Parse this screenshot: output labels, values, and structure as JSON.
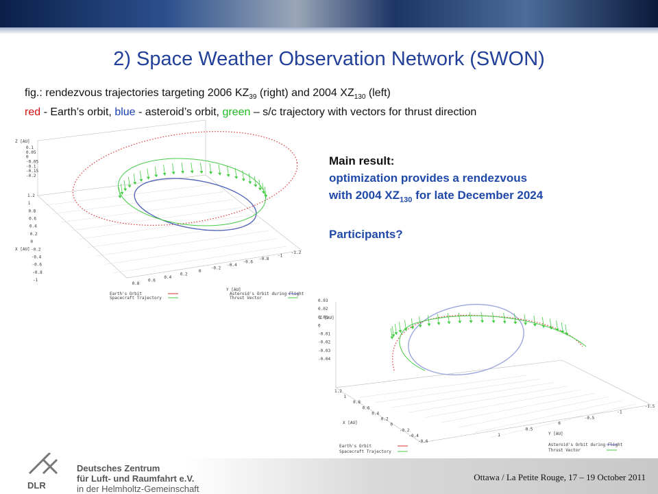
{
  "header": {
    "title": "2) Space Weather Observation Network (SWON)"
  },
  "caption": {
    "line1": [
      "fig.: rendezvous trajectories targeting 2006 KZ",
      "39",
      " (right) and 2004 XZ",
      "130",
      " (left)"
    ],
    "line2": [
      "red",
      " - Earth’s orbit, ",
      "blue",
      " - asteroid’s orbit, ",
      "green",
      " – s/c trajectory with vectors for thrust direction"
    ]
  },
  "result": {
    "heading": "Main result:",
    "line1": "optimization provides a rendezvous",
    "line2": [
      "with 2004 XZ",
      "130",
      " for late December 2024"
    ],
    "question": "Participants?"
  },
  "plots": [
    {
      "z_label": "Z [AU]",
      "z_ticks": [
        "0.1",
        "0.05",
        "0",
        "-0.05",
        "-0.1",
        "-0.15",
        "-0.2"
      ],
      "x_label": "X [AU]",
      "x_ticks": [
        "1.2",
        "1",
        "0.8",
        "0.6",
        "0.4",
        "0.2",
        "0",
        "-0.2",
        "-0.4",
        "-0.6",
        "-0.8",
        "-1"
      ],
      "y_label": "Y [AU]",
      "y_ticks": [
        "0.8",
        "0.6",
        "0.4",
        "0.2",
        "0",
        "-0.2",
        "-0.4",
        "-0.6",
        "-0.8",
        "-1",
        "-1.2"
      ],
      "legend": [
        "Earth's Orbit",
        "Spacecraft Trajectory",
        "Asteroid's Orbit during Flight",
        "Thrust Vector"
      ]
    },
    {
      "z_label": "Z [AU]",
      "z_ticks": [
        "0.03",
        "0.02",
        "0.01",
        "0",
        "-0.01",
        "-0.02",
        "-0.03",
        "-0.04"
      ],
      "x_label": "X [AU]",
      "x_ticks": [
        "1.2",
        "1",
        "0.8",
        "0.6",
        "0.4",
        "0.2",
        "0",
        "-0.2",
        "-0.4",
        "-0.6"
      ],
      "y_label": "Y [AU]",
      "y_ticks": [
        "1",
        "0.5",
        "0",
        "-0.5",
        "-1",
        "-1.5"
      ],
      "legend": [
        "Earth's Orbit",
        "Spacecraft Trajectory",
        "Asteroid's Orbit during Flight",
        "Thrust Vector"
      ]
    }
  ],
  "footer": {
    "logo": "DLR",
    "org": [
      "Deutsches Zentrum",
      "für Luft- und Raumfahrt e.V.",
      "in der Helmholtz-Gemeinschaft"
    ],
    "event": "Ottawa / La Petite Rouge, 17 – 19 October 2011"
  }
}
